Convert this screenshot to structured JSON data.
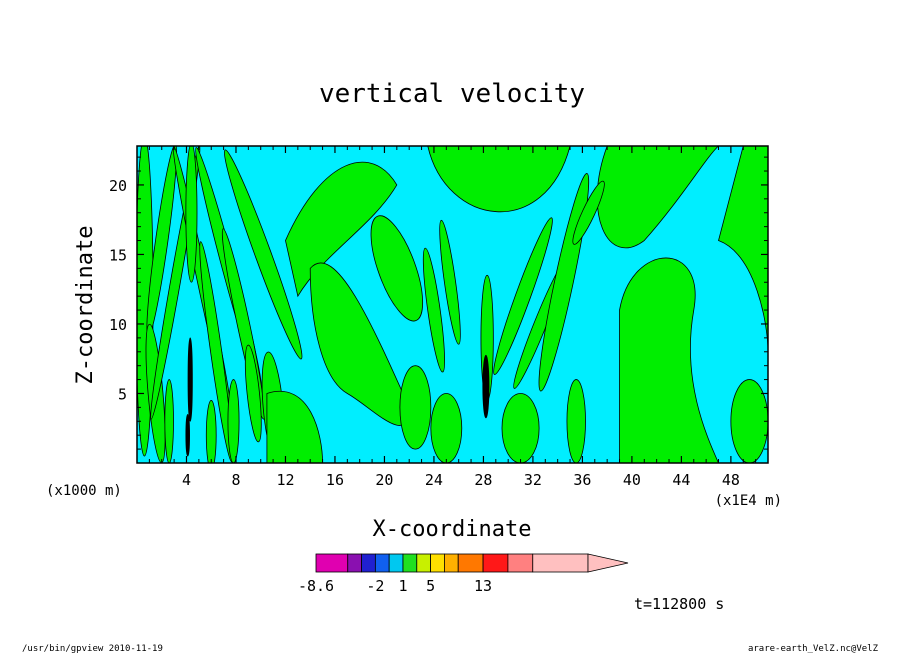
{
  "chart_data": {
    "type": "heatmap",
    "title": "vertical velocity",
    "xlabel": "X-coordinate",
    "ylabel": "Z-coordinate",
    "x_unit_left": "(x1000 m)",
    "x_unit_right": "(x1E4 m)",
    "xlim": [
      0,
      51
    ],
    "ylim": [
      0,
      22.8
    ],
    "x_ticks": [
      "4",
      "8",
      "12",
      "16",
      "20",
      "24",
      "28",
      "32",
      "36",
      "40",
      "44",
      "48"
    ],
    "x_tick_values": [
      4,
      8,
      12,
      16,
      20,
      24,
      28,
      32,
      36,
      40,
      44,
      48
    ],
    "y_ticks": [
      "5",
      "10",
      "15",
      "20"
    ],
    "y_tick_values": [
      5,
      10,
      15,
      20
    ],
    "colorbar": {
      "colors": [
        "#e000b0",
        "#8a10b0",
        "#2020d0",
        "#1060f0",
        "#00c8f0",
        "#20e020",
        "#c8f000",
        "#ffe000",
        "#ffb000",
        "#ff7800",
        "#ff1818",
        "#ff8080",
        "#ffc0c0"
      ],
      "tick_labels": [
        "-8.6",
        "-2",
        "1",
        "5",
        "13"
      ],
      "tick_boundaries": [
        0,
        3,
        5,
        7,
        10
      ]
    },
    "time_label": "t=112800 s",
    "colors": {
      "positive": "#00ee00",
      "negative": "#00eeff",
      "strong": "#000000"
    }
  },
  "footer": {
    "left": "/usr/bin/gpview   2010-11-19",
    "right": "arare-earth_VelZ.nc@VelZ"
  }
}
